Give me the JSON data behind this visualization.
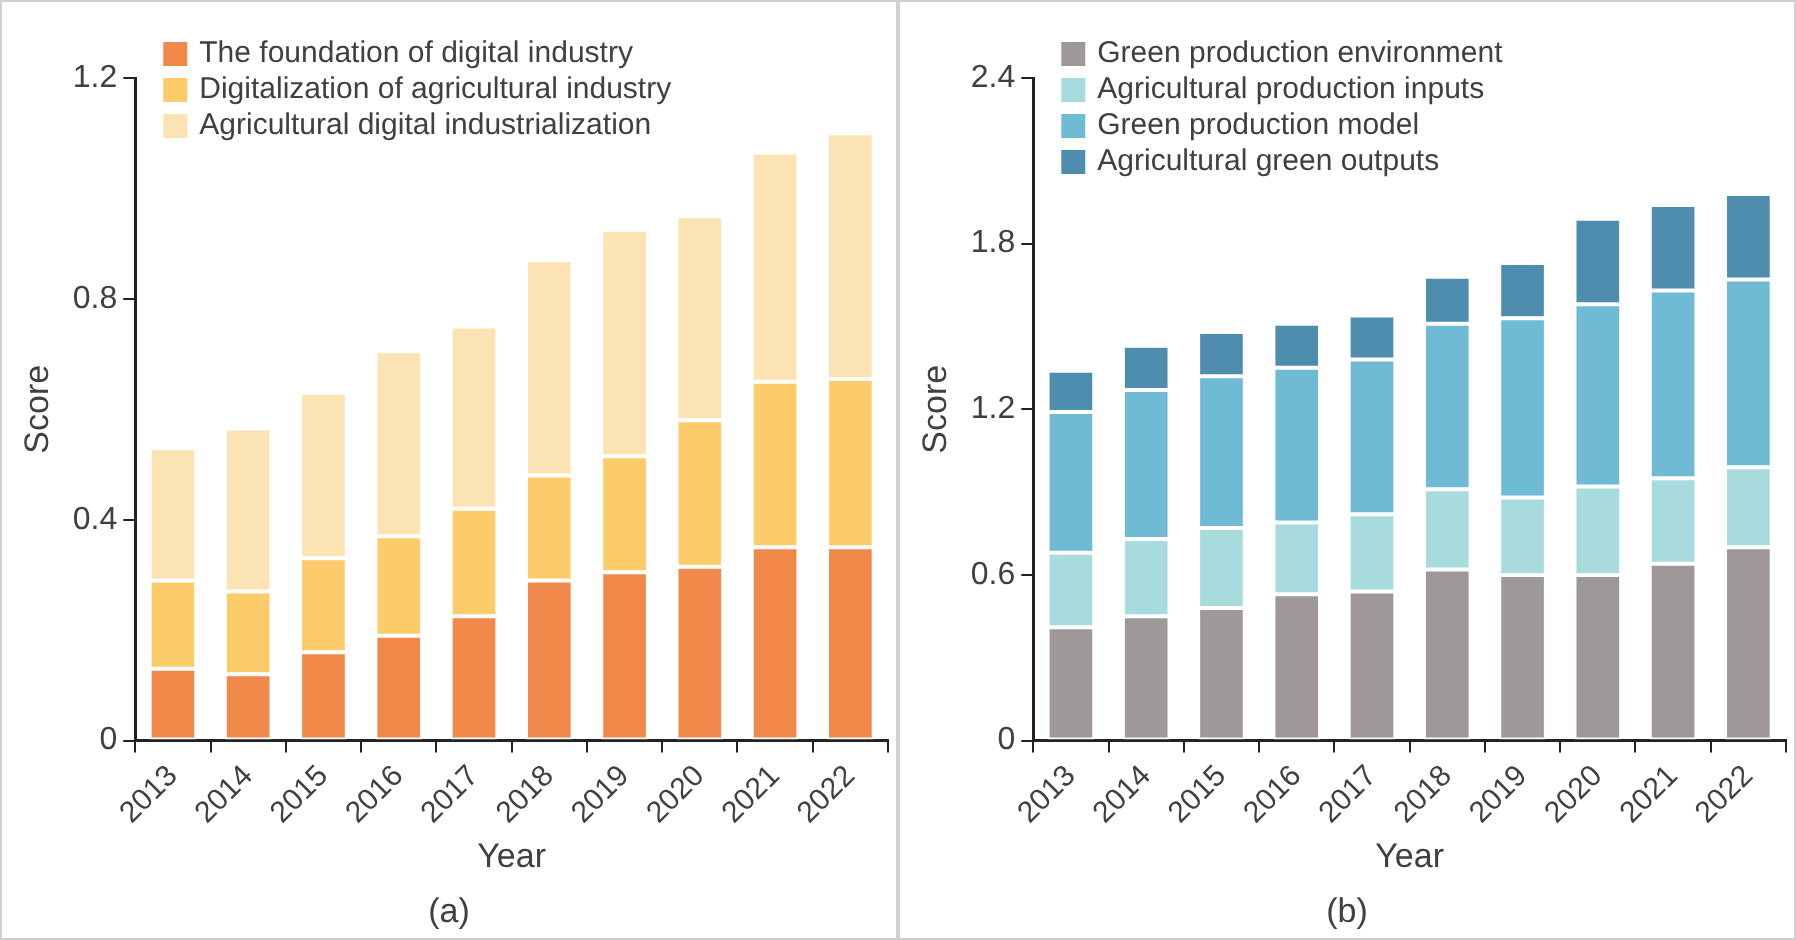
{
  "chart_data": [
    {
      "type": "bar",
      "stacked": true,
      "xlabel": "Year",
      "ylabel": "Score",
      "annotations": [
        "(a)"
      ],
      "categories": [
        "2013",
        "2014",
        "2015",
        "2016",
        "2017",
        "2018",
        "2019",
        "2020",
        "2021",
        "2022"
      ],
      "ylim": [
        0,
        1.2
      ],
      "yticks": [
        0,
        0.4,
        0.8,
        1.2
      ],
      "grid": false,
      "legend": "top left",
      "series": [
        {
          "name": "The foundation of digital industry",
          "color": "#f0894a",
          "values": [
            0.13,
            0.12,
            0.16,
            0.19,
            0.225,
            0.29,
            0.305,
            0.315,
            0.35,
            0.35
          ]
        },
        {
          "name": "Digitalization of agricultural industry",
          "color": "#fccb6a",
          "values": [
            0.16,
            0.15,
            0.17,
            0.18,
            0.195,
            0.19,
            0.21,
            0.265,
            0.3,
            0.305
          ]
        },
        {
          "name": "Agricultural digital industrialization",
          "color": "#fce3b4",
          "values": [
            0.24,
            0.295,
            0.3,
            0.335,
            0.33,
            0.39,
            0.41,
            0.37,
            0.415,
            0.445
          ]
        }
      ]
    },
    {
      "type": "bar",
      "stacked": true,
      "xlabel": "Year",
      "ylabel": "Score",
      "annotations": [
        "(b)"
      ],
      "categories": [
        "2013",
        "2014",
        "2015",
        "2016",
        "2017",
        "2018",
        "2019",
        "2020",
        "2021",
        "2022"
      ],
      "ylim": [
        0,
        2.4
      ],
      "yticks": [
        0,
        0.6,
        1.2,
        1.8,
        2.4
      ],
      "grid": false,
      "legend": "top left",
      "series": [
        {
          "name": "Green production environment",
          "color": "#9e989a",
          "values": [
            0.41,
            0.45,
            0.48,
            0.53,
            0.54,
            0.62,
            0.6,
            0.6,
            0.64,
            0.7
          ]
        },
        {
          "name": "Agricultural production inputs",
          "color": "#a8dbde",
          "values": [
            0.27,
            0.28,
            0.29,
            0.26,
            0.28,
            0.29,
            0.28,
            0.32,
            0.31,
            0.29
          ]
        },
        {
          "name": "Green production model",
          "color": "#6fbad5",
          "values": [
            0.51,
            0.54,
            0.55,
            0.56,
            0.56,
            0.6,
            0.65,
            0.66,
            0.68,
            0.68
          ]
        },
        {
          "name": "Agricultural green outputs",
          "color": "#4f8daf",
          "values": [
            0.15,
            0.16,
            0.16,
            0.16,
            0.16,
            0.17,
            0.2,
            0.31,
            0.31,
            0.31
          ]
        }
      ]
    }
  ]
}
